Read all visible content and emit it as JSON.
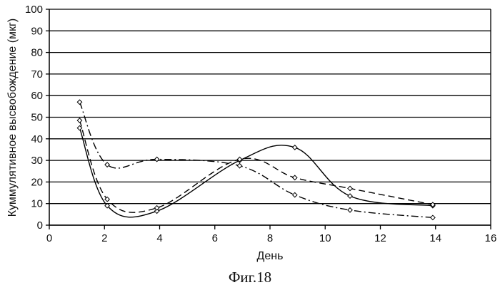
{
  "chart_data": {
    "type": "line",
    "xlabel": "День",
    "ylabel": "Куммулятивное высвобождение (мкг)",
    "xlim": [
      0,
      16
    ],
    "ylim": [
      0,
      100
    ],
    "xticks": [
      "0",
      "2",
      "4",
      "6",
      "8",
      "10",
      "12",
      "14",
      "16"
    ],
    "yticks": [
      "0",
      "10",
      "20",
      "30",
      "40",
      "50",
      "60",
      "70",
      "80",
      "90",
      "100"
    ],
    "grid": "horizontal",
    "caption": "Фиг.18",
    "series": [
      {
        "style": "solid",
        "color": "#000000",
        "x": [
          1.1,
          2.1,
          3.9,
          6.9,
          8.9,
          10.9,
          13.9
        ],
        "y": [
          45,
          9,
          6.5,
          30,
          36,
          13.5,
          9
        ]
      },
      {
        "style": "dashed",
        "color": "#000000",
        "x": [
          1.1,
          2.1,
          3.9,
          6.9,
          8.9,
          10.9,
          13.9
        ],
        "y": [
          48.5,
          12,
          8,
          30.5,
          22,
          17,
          9.5
        ]
      },
      {
        "style": "dash-dot",
        "color": "#000000",
        "x": [
          1.1,
          2.1,
          3.9,
          6.9,
          8.9,
          10.9,
          13.9
        ],
        "y": [
          57,
          28,
          30.5,
          27.5,
          14,
          7,
          3.5
        ]
      }
    ]
  }
}
